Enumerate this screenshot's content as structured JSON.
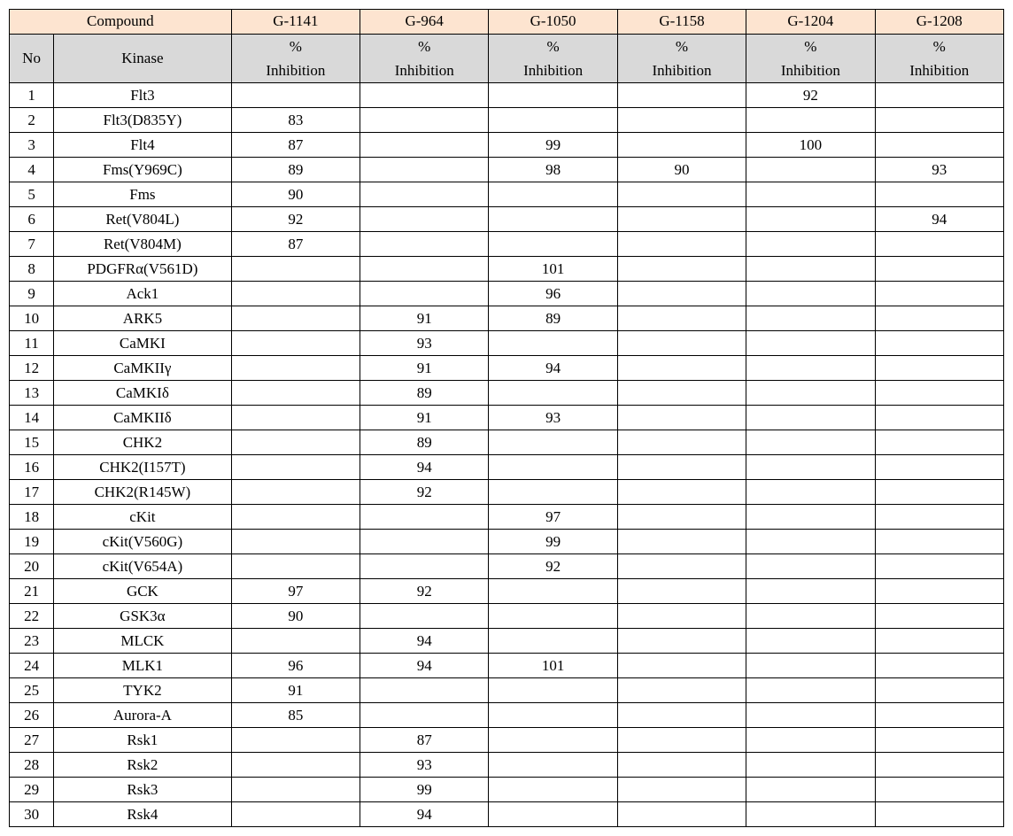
{
  "header": {
    "compound_label": "Compound",
    "compounds": [
      "G-1141",
      "G-964",
      "G-1050",
      "G-1158",
      "G-1204",
      "G-1208"
    ],
    "no_label": "No",
    "kinase_label": "Kinase",
    "inhibition_label": "% Inhibition"
  },
  "rows": [
    {
      "no": "1",
      "kinase": "Flt3",
      "v": [
        "",
        "",
        "",
        "",
        "92",
        ""
      ]
    },
    {
      "no": "2",
      "kinase": "Flt3(D835Y)",
      "v": [
        "83",
        "",
        "",
        "",
        "",
        ""
      ]
    },
    {
      "no": "3",
      "kinase": "Flt4",
      "v": [
        "87",
        "",
        "99",
        "",
        "100",
        ""
      ]
    },
    {
      "no": "4",
      "kinase": "Fms(Y969C)",
      "v": [
        "89",
        "",
        "98",
        "90",
        "",
        "93"
      ]
    },
    {
      "no": "5",
      "kinase": "Fms",
      "v": [
        "90",
        "",
        "",
        "",
        "",
        ""
      ]
    },
    {
      "no": "6",
      "kinase": "Ret(V804L)",
      "v": [
        "92",
        "",
        "",
        "",
        "",
        "94"
      ]
    },
    {
      "no": "7",
      "kinase": "Ret(V804M)",
      "v": [
        "87",
        "",
        "",
        "",
        "",
        ""
      ]
    },
    {
      "no": "8",
      "kinase": "PDGFRα(V561D)",
      "v": [
        "",
        "",
        "101",
        "",
        "",
        ""
      ]
    },
    {
      "no": "9",
      "kinase": "Ack1",
      "v": [
        "",
        "",
        "96",
        "",
        "",
        ""
      ]
    },
    {
      "no": "10",
      "kinase": "ARK5",
      "v": [
        "",
        "91",
        "89",
        "",
        "",
        ""
      ]
    },
    {
      "no": "11",
      "kinase": "CaMKI",
      "v": [
        "",
        "93",
        "",
        "",
        "",
        ""
      ]
    },
    {
      "no": "12",
      "kinase": "CaMKIIγ",
      "v": [
        "",
        "91",
        "94",
        "",
        "",
        ""
      ]
    },
    {
      "no": "13",
      "kinase": "CaMKIδ",
      "v": [
        "",
        "89",
        "",
        "",
        "",
        ""
      ]
    },
    {
      "no": "14",
      "kinase": "CaMKIIδ",
      "v": [
        "",
        "91",
        "93",
        "",
        "",
        ""
      ]
    },
    {
      "no": "15",
      "kinase": "CHK2",
      "v": [
        "",
        "89",
        "",
        "",
        "",
        ""
      ]
    },
    {
      "no": "16",
      "kinase": "CHK2(I157T)",
      "v": [
        "",
        "94",
        "",
        "",
        "",
        ""
      ]
    },
    {
      "no": "17",
      "kinase": "CHK2(R145W)",
      "v": [
        "",
        "92",
        "",
        "",
        "",
        ""
      ]
    },
    {
      "no": "18",
      "kinase": "cKit",
      "v": [
        "",
        "",
        "97",
        "",
        "",
        ""
      ]
    },
    {
      "no": "19",
      "kinase": "cKit(V560G)",
      "v": [
        "",
        "",
        "99",
        "",
        "",
        ""
      ]
    },
    {
      "no": "20",
      "kinase": "cKit(V654A)",
      "v": [
        "",
        "",
        "92",
        "",
        "",
        ""
      ]
    },
    {
      "no": "21",
      "kinase": "GCK",
      "v": [
        "97",
        "92",
        "",
        "",
        "",
        ""
      ]
    },
    {
      "no": "22",
      "kinase": "GSK3α",
      "v": [
        "90",
        "",
        "",
        "",
        "",
        ""
      ]
    },
    {
      "no": "23",
      "kinase": "MLCK",
      "v": [
        "",
        "94",
        "",
        "",
        "",
        ""
      ]
    },
    {
      "no": "24",
      "kinase": "MLK1",
      "v": [
        "96",
        "94",
        "101",
        "",
        "",
        ""
      ]
    },
    {
      "no": "25",
      "kinase": "TYK2",
      "v": [
        "91",
        "",
        "",
        "",
        "",
        ""
      ]
    },
    {
      "no": "26",
      "kinase": "Aurora-A",
      "v": [
        "85",
        "",
        "",
        "",
        "",
        ""
      ]
    },
    {
      "no": "27",
      "kinase": "Rsk1",
      "v": [
        "",
        "87",
        "",
        "",
        "",
        ""
      ]
    },
    {
      "no": "28",
      "kinase": "Rsk2",
      "v": [
        "",
        "93",
        "",
        "",
        "",
        ""
      ]
    },
    {
      "no": "29",
      "kinase": "Rsk3",
      "v": [
        "",
        "99",
        "",
        "",
        "",
        ""
      ]
    },
    {
      "no": "30",
      "kinase": "Rsk4",
      "v": [
        "",
        "94",
        "",
        "",
        "",
        ""
      ]
    }
  ],
  "style": {
    "header_peach": "#fde4d0",
    "header_gray": "#d9d9d9",
    "border_color": "#000000",
    "font_family": "Times New Roman, Batang, serif",
    "cell_fontsize": 17
  }
}
